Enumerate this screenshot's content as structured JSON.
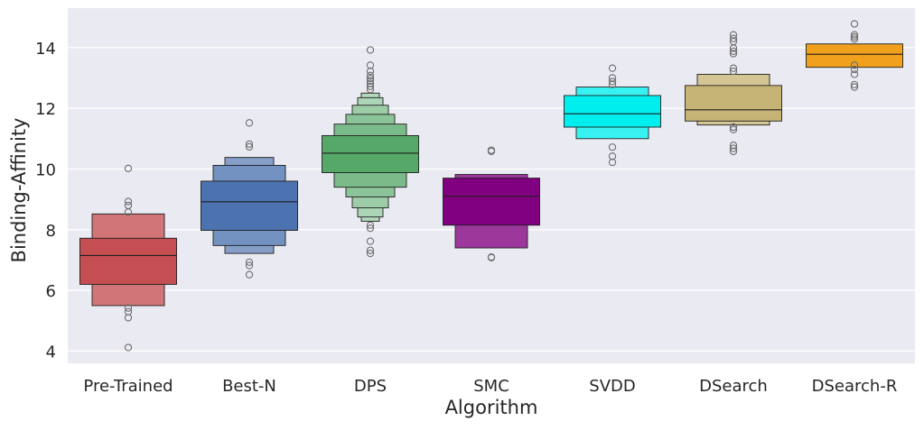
{
  "chart_data": {
    "type": "boxen",
    "xlabel": "Algorithm",
    "ylabel": "Binding-Affinity",
    "ylim": [
      3.6,
      15.3
    ],
    "yticks": [
      4,
      6,
      8,
      10,
      12,
      14
    ],
    "grid": true,
    "categories": [
      "Pre-Trained",
      "Best-N",
      "DPS",
      "SMC",
      "SVDD",
      "DSearch",
      "DSearch-R"
    ],
    "series": [
      {
        "name": "Pre-Trained",
        "color": "#c44e52",
        "median": 7.15,
        "levels": [
          [
            6.2,
            7.72
          ],
          [
            5.5,
            8.52
          ]
        ],
        "outliers": [
          10.02,
          8.93,
          8.8,
          8.58,
          5.42,
          5.3,
          5.1,
          4.12
        ]
      },
      {
        "name": "Best-N",
        "color": "#4c72b0",
        "median": 8.92,
        "levels": [
          [
            7.98,
            9.6
          ],
          [
            7.48,
            10.12
          ],
          [
            7.22,
            10.38
          ]
        ],
        "outliers": [
          11.52,
          10.82,
          10.73,
          6.93,
          6.82,
          6.52
        ]
      },
      {
        "name": "DPS",
        "color": "#55a868",
        "median": 10.52,
        "levels": [
          [
            9.88,
            11.1
          ],
          [
            9.4,
            11.48
          ],
          [
            9.08,
            11.8
          ],
          [
            8.72,
            12.1
          ],
          [
            8.42,
            12.35
          ],
          [
            8.28,
            12.5
          ]
        ],
        "outliers": [
          13.92,
          13.42,
          13.22,
          13.08,
          12.98,
          12.9,
          12.82,
          12.72,
          12.62,
          8.15,
          8.05,
          7.62,
          7.32,
          7.22
        ]
      },
      {
        "name": "SMC",
        "color": "#800080",
        "median": 9.1,
        "levels": [
          [
            8.15,
            9.7
          ],
          [
            7.4,
            9.82
          ]
        ],
        "outliers": [
          10.62,
          10.58,
          7.1,
          7.08
        ]
      },
      {
        "name": "SVDD",
        "color": "#00eeee",
        "median": 11.82,
        "levels": [
          [
            11.38,
            12.42
          ],
          [
            11.0,
            12.7
          ]
        ],
        "outliers": [
          13.32,
          13.0,
          12.88,
          12.78,
          10.72,
          10.42,
          10.22
        ]
      },
      {
        "name": "DSearch",
        "color": "#c6b476",
        "median": 11.95,
        "levels": [
          [
            11.58,
            12.75
          ],
          [
            11.45,
            13.12
          ]
        ],
        "outliers": [
          14.42,
          14.3,
          14.2,
          13.98,
          13.88,
          13.8,
          13.32,
          13.22,
          11.38,
          11.3,
          10.78,
          10.68,
          10.58
        ]
      },
      {
        "name": "DSearch-R",
        "color": "#f0a01c",
        "median": 13.78,
        "levels": [
          [
            13.35,
            14.12
          ]
        ],
        "outliers": [
          14.78,
          14.42,
          14.35,
          14.28,
          13.42,
          13.28,
          13.12,
          12.78,
          12.7
        ]
      }
    ]
  }
}
